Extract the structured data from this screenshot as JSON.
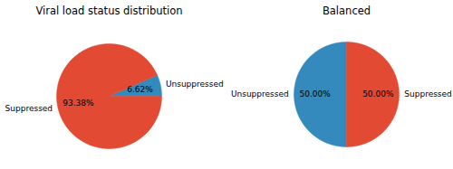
{
  "chart_data": [
    {
      "type": "pie",
      "title": "Viral load status distribution",
      "categories": [
        "Unsuppressed",
        "Suppressed"
      ],
      "values": [
        6.62,
        93.38
      ],
      "value_labels": [
        "6.62%",
        "93.38%"
      ],
      "colors": [
        "#348ABD",
        "#E24A33"
      ],
      "data_labels": true
    },
    {
      "type": "pie",
      "title": "Balanced",
      "categories": [
        "Unsuppressed",
        "Suppressed"
      ],
      "values": [
        50,
        50
      ],
      "value_labels": [
        "50.00%",
        "50.00%"
      ],
      "colors": [
        "#348ABD",
        "#E24A33"
      ],
      "data_labels": true
    }
  ]
}
